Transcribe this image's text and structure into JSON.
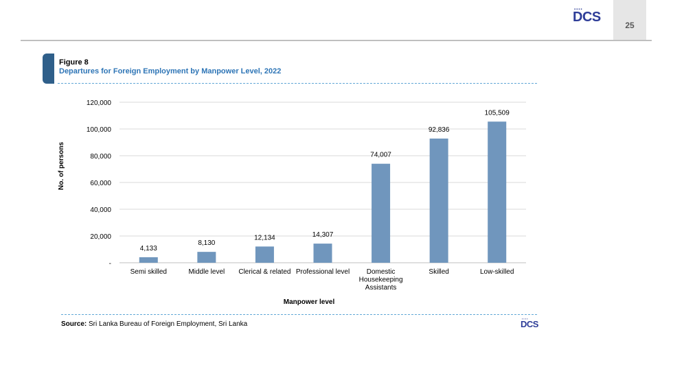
{
  "page": {
    "number": "25"
  },
  "logo": {
    "text": "DCS"
  },
  "figure": {
    "label": "Figure 8",
    "title": "Departures for Foreign Employment by Manpower Level, 2022"
  },
  "source": {
    "prefix": "Source:",
    "text": " Sri Lanka Bureau of Foreign Employment, Sri Lanka"
  },
  "colors": {
    "bar": "#7096bd",
    "title": "#2e75b6",
    "logo": "#2e3d98",
    "grid": "#d9d9d9"
  },
  "chart_data": {
    "type": "bar",
    "title": "Departures for Foreign Employment by Manpower Level, 2022",
    "xlabel": "Manpower level",
    "ylabel": "No. of persons",
    "categories": [
      [
        "Semi skilled"
      ],
      [
        "Middle level"
      ],
      [
        "Clerical & related"
      ],
      [
        "Professional level"
      ],
      [
        "Domestic",
        "Housekeeping",
        "Assistants"
      ],
      [
        "Skilled"
      ],
      [
        "Low-skilled"
      ]
    ],
    "values": [
      4133,
      8130,
      12134,
      14307,
      74007,
      92836,
      105509
    ],
    "value_labels": [
      "4,133",
      "8,130",
      "12,134",
      "14,307",
      "74,007",
      "92,836",
      "105,509"
    ],
    "yticks": [
      "-",
      "20,000",
      "40,000",
      "60,000",
      "80,000",
      "100,000",
      "120,000"
    ],
    "ylim": [
      0,
      120000
    ],
    "grid": true,
    "legend": "none"
  }
}
